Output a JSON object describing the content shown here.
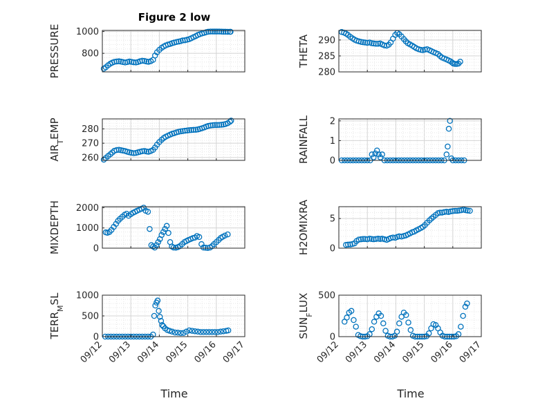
{
  "figure": {
    "title": "Figure 2 low",
    "xlabel": "Time",
    "x_tick_labels": [
      "09/12",
      "09/13",
      "09/14",
      "09/15",
      "09/16",
      "09/17"
    ],
    "marker_color": "#0072BD"
  },
  "chart_data": [
    {
      "type": "scatter",
      "title": "Figure 2 low",
      "ylabel": "PRESSURE",
      "ylabel_sub": "",
      "ylim": [
        630,
        1010
      ],
      "yticks": [
        800,
        1000
      ],
      "xlim": [
        0,
        5
      ],
      "grid": true,
      "x": [
        0.05,
        0.12,
        0.2,
        0.28,
        0.35,
        0.42,
        0.5,
        0.58,
        0.65,
        0.72,
        0.8,
        0.88,
        0.95,
        1.02,
        1.1,
        1.18,
        1.25,
        1.32,
        1.4,
        1.48,
        1.55,
        1.62,
        1.7,
        1.78,
        1.85,
        1.92,
        2.0,
        2.08,
        2.15,
        2.22,
        2.3,
        2.38,
        2.45,
        2.52,
        2.6,
        2.68,
        2.75,
        2.82,
        2.9,
        2.98,
        3.05,
        3.12,
        3.2,
        3.28,
        3.35,
        3.42,
        3.5,
        3.58,
        3.65,
        3.72,
        3.8,
        3.88,
        3.95,
        4.02,
        4.1,
        4.18,
        4.25,
        4.32,
        4.4,
        4.48,
        4.5
      ],
      "y": [
        660,
        672,
        690,
        705,
        715,
        722,
        725,
        727,
        724,
        720,
        716,
        720,
        725,
        722,
        718,
        716,
        720,
        727,
        732,
        730,
        725,
        722,
        728,
        740,
        780,
        810,
        832,
        850,
        862,
        872,
        880,
        886,
        893,
        898,
        904,
        908,
        912,
        918,
        920,
        925,
        930,
        938,
        948,
        958,
        968,
        975,
        982,
        988,
        994,
        998,
        1000,
        1000,
        1000,
        1000,
        1000,
        999,
        998,
        998,
        997,
        997,
        997
      ]
    },
    {
      "type": "scatter",
      "title": "",
      "ylabel": "THETA",
      "ylabel_sub": "",
      "ylim": [
        280,
        293
      ],
      "yticks": [
        280,
        285,
        290
      ],
      "xlim": [
        0,
        5
      ],
      "grid": true,
      "x": [
        0.1,
        0.18,
        0.25,
        0.32,
        0.4,
        0.48,
        0.55,
        0.62,
        0.7,
        0.78,
        0.85,
        0.92,
        1.0,
        1.08,
        1.15,
        1.22,
        1.3,
        1.38,
        1.45,
        1.52,
        1.6,
        1.68,
        1.75,
        1.82,
        1.9,
        1.98,
        2.05,
        2.12,
        2.2,
        2.28,
        2.35,
        2.42,
        2.5,
        2.58,
        2.65,
        2.72,
        2.8,
        2.88,
        2.95,
        3.02,
        3.1,
        3.18,
        3.25,
        3.32,
        3.4,
        3.48,
        3.55,
        3.62,
        3.7,
        3.78,
        3.85,
        3.92,
        3.98,
        4.02,
        4.08,
        4.14,
        4.2,
        4.26
      ],
      "y": [
        292.5,
        292.3,
        292,
        291.6,
        291,
        290.5,
        290.1,
        289.8,
        289.6,
        289.4,
        289.3,
        289.2,
        289.1,
        289.2,
        289.0,
        288.9,
        288.8,
        288.8,
        288.9,
        288.6,
        288.3,
        288.2,
        288.5,
        289.2,
        290.4,
        291.6,
        292.2,
        291.8,
        291.1,
        290.3,
        289.6,
        289,
        288.6,
        288.2,
        287.8,
        287.4,
        287.1,
        286.9,
        286.8,
        287.0,
        287.1,
        286.8,
        286.5,
        286.2,
        285.9,
        285.6,
        285.0,
        284.5,
        284.2,
        283.9,
        283.6,
        283.3,
        282.9,
        282.6,
        282.5,
        282.5,
        282.6,
        283.2
      ]
    },
    {
      "type": "scatter",
      "title": "",
      "ylabel": "AIR",
      "ylabel_sub": "T",
      "ylabel_suffix": "EMP",
      "ylim": [
        258,
        287
      ],
      "yticks": [
        260,
        270,
        280
      ],
      "xlim": [
        0,
        5
      ],
      "grid": true,
      "x": [
        0.05,
        0.12,
        0.2,
        0.28,
        0.35,
        0.42,
        0.5,
        0.58,
        0.65,
        0.72,
        0.8,
        0.88,
        0.95,
        1.02,
        1.1,
        1.18,
        1.25,
        1.32,
        1.4,
        1.48,
        1.55,
        1.62,
        1.7,
        1.78,
        1.85,
        1.92,
        2.0,
        2.08,
        2.15,
        2.22,
        2.3,
        2.38,
        2.45,
        2.52,
        2.6,
        2.68,
        2.75,
        2.82,
        2.9,
        2.98,
        3.05,
        3.12,
        3.2,
        3.28,
        3.35,
        3.42,
        3.5,
        3.58,
        3.65,
        3.72,
        3.8,
        3.88,
        3.95,
        4.02,
        4.1,
        4.18,
        4.25,
        4.32,
        4.4,
        4.48,
        4.52
      ],
      "y": [
        258.5,
        259.6,
        261,
        262.3,
        263.5,
        264.7,
        265.2,
        265.4,
        265.1,
        264.8,
        264.5,
        264,
        263.6,
        263.3,
        263,
        263.2,
        263.6,
        264,
        264.4,
        264.6,
        264.2,
        264,
        264.5,
        265.3,
        267,
        269,
        270.8,
        272.4,
        273.6,
        274.5,
        275.3,
        276,
        276.6,
        277,
        277.6,
        278,
        278.3,
        278.5,
        278.7,
        278.9,
        279.1,
        279.2,
        279.3,
        279.4,
        279.6,
        280,
        280.5,
        281,
        281.6,
        282.1,
        282.4,
        282.6,
        282.7,
        282.7,
        282.8,
        282.9,
        283.1,
        283.4,
        284,
        285,
        285.8
      ]
    },
    {
      "type": "scatter",
      "title": "",
      "ylabel": "RAINFALL",
      "ylabel_sub": "",
      "ylim": [
        0,
        2.1
      ],
      "yticks": [
        0,
        1,
        2
      ],
      "xlim": [
        0,
        5
      ],
      "grid": true,
      "x": [
        0.1,
        0.2,
        0.3,
        0.4,
        0.5,
        0.6,
        0.7,
        0.8,
        0.9,
        1.0,
        1.1,
        1.16,
        1.22,
        1.28,
        1.34,
        1.4,
        1.46,
        1.52,
        1.6,
        1.7,
        1.8,
        1.9,
        2.0,
        2.1,
        2.2,
        2.3,
        2.4,
        2.5,
        2.6,
        2.7,
        2.8,
        2.9,
        3.0,
        3.1,
        3.2,
        3.3,
        3.4,
        3.5,
        3.6,
        3.7,
        3.78,
        3.82,
        3.86,
        3.9,
        3.95,
        4.0,
        4.1,
        4.2,
        4.3,
        4.4
      ],
      "y": [
        0,
        0,
        0,
        0,
        0,
        0,
        0,
        0,
        0,
        0,
        0,
        0.3,
        0.15,
        0.35,
        0.5,
        0.3,
        0.15,
        0.3,
        0,
        0,
        0,
        0,
        0,
        0,
        0,
        0,
        0,
        0,
        0,
        0,
        0,
        0,
        0,
        0,
        0,
        0,
        0,
        0,
        0,
        0,
        0.3,
        0.7,
        1.6,
        2.0,
        0.1,
        0,
        0,
        0,
        0,
        0
      ]
    },
    {
      "type": "scatter",
      "title": "",
      "ylabel": "MIXDEPTH",
      "ylabel_sub": "",
      "ylim": [
        0,
        2050
      ],
      "yticks": [
        0,
        1000,
        2000
      ],
      "xlim": [
        0,
        5
      ],
      "grid": true,
      "x": [
        0.12,
        0.18,
        0.25,
        0.32,
        0.4,
        0.48,
        0.55,
        0.62,
        0.7,
        0.78,
        0.85,
        0.92,
        1.0,
        1.08,
        1.15,
        1.22,
        1.3,
        1.38,
        1.45,
        1.52,
        1.6,
        1.66,
        1.72,
        1.78,
        1.84,
        1.9,
        1.96,
        2.02,
        2.08,
        2.14,
        2.2,
        2.26,
        2.32,
        2.38,
        2.44,
        2.5,
        2.58,
        2.65,
        2.72,
        2.8,
        2.88,
        2.95,
        3.02,
        3.1,
        3.18,
        3.25,
        3.32,
        3.4,
        3.48,
        3.55,
        3.62,
        3.7,
        3.78,
        3.85,
        3.92,
        4.0,
        4.08,
        4.15,
        4.22,
        4.3,
        4.4
      ],
      "y": [
        780,
        760,
        800,
        900,
        1050,
        1200,
        1350,
        1450,
        1550,
        1650,
        1700,
        1600,
        1680,
        1750,
        1800,
        1850,
        1900,
        1950,
        2000,
        1850,
        1800,
        950,
        150,
        80,
        30,
        150,
        300,
        450,
        650,
        800,
        950,
        1100,
        750,
        300,
        80,
        30,
        20,
        50,
        100,
        200,
        300,
        350,
        400,
        450,
        500,
        520,
        600,
        550,
        200,
        30,
        20,
        10,
        30,
        100,
        200,
        300,
        400,
        500,
        560,
        620,
        680
      ]
    },
    {
      "type": "scatter",
      "title": "",
      "ylabel": "H2OMIXRA",
      "ylabel_sub": "",
      "ylim": [
        0,
        7
      ],
      "yticks": [
        0,
        5
      ],
      "xlim": [
        0,
        5
      ],
      "grid": true,
      "x": [
        0.25,
        0.32,
        0.4,
        0.48,
        0.55,
        0.62,
        0.7,
        0.78,
        0.85,
        0.92,
        1.0,
        1.08,
        1.15,
        1.22,
        1.3,
        1.38,
        1.45,
        1.52,
        1.6,
        1.68,
        1.75,
        1.82,
        1.9,
        1.98,
        2.05,
        2.12,
        2.2,
        2.28,
        2.35,
        2.42,
        2.5,
        2.58,
        2.65,
        2.72,
        2.8,
        2.88,
        2.95,
        3.02,
        3.1,
        3.18,
        3.25,
        3.32,
        3.4,
        3.48,
        3.55,
        3.62,
        3.7,
        3.78,
        3.85,
        3.92,
        4.0,
        4.08,
        4.15,
        4.22,
        4.3,
        4.38,
        4.45,
        4.52,
        4.6
      ],
      "y": [
        0.55,
        0.6,
        0.62,
        0.7,
        0.8,
        1.2,
        1.45,
        1.5,
        1.55,
        1.55,
        1.5,
        1.6,
        1.55,
        1.5,
        1.55,
        1.6,
        1.55,
        1.6,
        1.5,
        1.4,
        1.55,
        1.7,
        1.8,
        1.75,
        1.9,
        2.0,
        1.95,
        2.05,
        2.15,
        2.3,
        2.5,
        2.7,
        2.8,
        3.0,
        3.2,
        3.4,
        3.6,
        3.9,
        4.3,
        4.7,
        5.0,
        5.3,
        5.6,
        5.9,
        6.0,
        6.0,
        6.1,
        6.15,
        6.1,
        6.2,
        6.25,
        6.3,
        6.3,
        6.35,
        6.4,
        6.5,
        6.4,
        6.35,
        6.3
      ]
    },
    {
      "type": "scatter",
      "title": "",
      "ylabel": "TERR",
      "ylabel_sub": "M",
      "ylabel_suffix": "SL",
      "ylim": [
        0,
        1000
      ],
      "yticks": [
        0,
        500,
        1000
      ],
      "xlim": [
        0,
        5
      ],
      "grid": true,
      "x": [
        0.1,
        0.2,
        0.3,
        0.4,
        0.5,
        0.6,
        0.7,
        0.8,
        0.9,
        1.0,
        1.1,
        1.2,
        1.3,
        1.4,
        1.5,
        1.6,
        1.7,
        1.78,
        1.82,
        1.86,
        1.9,
        1.94,
        1.98,
        2.02,
        2.06,
        2.1,
        2.14,
        2.2,
        2.28,
        2.36,
        2.45,
        2.55,
        2.65,
        2.75,
        2.85,
        2.95,
        3.05,
        3.15,
        3.25,
        3.35,
        3.45,
        3.55,
        3.65,
        3.75,
        3.85,
        3.95,
        4.05,
        4.15,
        4.25,
        4.35,
        4.42
      ],
      "y": [
        0,
        0,
        0,
        0,
        0,
        0,
        0,
        0,
        0,
        0,
        0,
        0,
        0,
        0,
        0,
        0,
        0,
        50,
        500,
        750,
        820,
        870,
        620,
        480,
        380,
        280,
        250,
        200,
        160,
        140,
        120,
        100,
        95,
        85,
        90,
        120,
        150,
        140,
        130,
        120,
        110,
        110,
        110,
        110,
        110,
        110,
        110,
        120,
        130,
        140,
        150
      ]
    },
    {
      "type": "scatter",
      "title": "",
      "ylabel": "SUN",
      "ylabel_sub": "F",
      "ylabel_suffix": "LUX",
      "ylim": [
        0,
        500
      ],
      "yticks": [
        0,
        500
      ],
      "xlim": [
        0,
        5
      ],
      "grid": true,
      "x": [
        0.2,
        0.28,
        0.36,
        0.44,
        0.52,
        0.6,
        0.68,
        0.76,
        0.84,
        0.92,
        1.0,
        1.08,
        1.16,
        1.24,
        1.32,
        1.4,
        1.48,
        1.56,
        1.64,
        1.72,
        1.8,
        1.88,
        1.96,
        2.04,
        2.12,
        2.2,
        2.28,
        2.36,
        2.44,
        2.52,
        2.6,
        2.68,
        2.76,
        2.84,
        2.92,
        3.0,
        3.08,
        3.16,
        3.24,
        3.32,
        3.4,
        3.48,
        3.56,
        3.64,
        3.72,
        3.8,
        3.88,
        3.96,
        4.04,
        4.12,
        4.2,
        4.28,
        4.36,
        4.44,
        4.5
      ],
      "y": [
        180,
        230,
        290,
        310,
        200,
        120,
        20,
        5,
        0,
        0,
        5,
        30,
        90,
        180,
        240,
        280,
        250,
        160,
        70,
        10,
        0,
        0,
        10,
        60,
        160,
        240,
        290,
        260,
        170,
        80,
        10,
        0,
        0,
        0,
        0,
        0,
        5,
        40,
        100,
        150,
        140,
        100,
        50,
        10,
        0,
        0,
        0,
        0,
        0,
        5,
        30,
        120,
        250,
        360,
        400
      ]
    }
  ]
}
